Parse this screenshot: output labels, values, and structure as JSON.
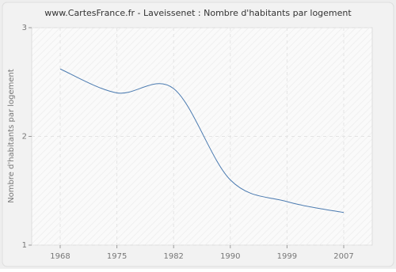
{
  "chart_data": {
    "type": "line",
    "title": "www.CartesFrance.fr - Laveissenet : Nombre d'habitants par logement",
    "y_label": "Nombre d'habitants par logement",
    "categories": [
      "1968",
      "1975",
      "1982",
      "1990",
      "1999",
      "2007"
    ],
    "series": [
      {
        "name": "Laveissenet",
        "color": "#4a7ab0",
        "values": [
          2.62,
          2.4,
          2.44,
          1.6,
          1.4,
          1.3
        ]
      }
    ],
    "ylim": [
      1,
      3
    ],
    "yticks": [
      1,
      2,
      3
    ],
    "grid": true
  }
}
